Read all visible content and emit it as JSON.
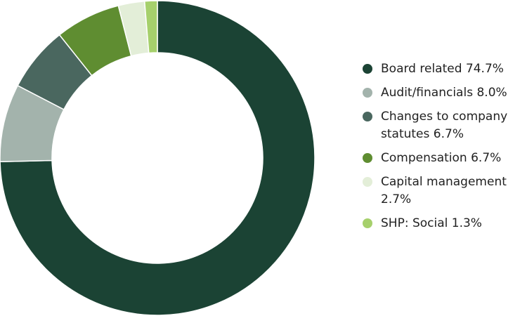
{
  "chart_data": {
    "type": "donut",
    "categories": [
      "Board related",
      "Audit/financials",
      "Changes to company statutes",
      "Compensation",
      "Capital management",
      "SHP: Social"
    ],
    "values": [
      74.7,
      8.0,
      6.7,
      6.7,
      2.7,
      1.3
    ],
    "value_labels": [
      "74.7%",
      "8.0%",
      "6.7%",
      "6.7%",
      "2.7%",
      "1.3%"
    ],
    "colors": [
      "#1b4334",
      "#a3b3ac",
      "#4a675f",
      "#5f8d31",
      "#e3eed8",
      "#a6d06c"
    ],
    "legend": "right"
  }
}
